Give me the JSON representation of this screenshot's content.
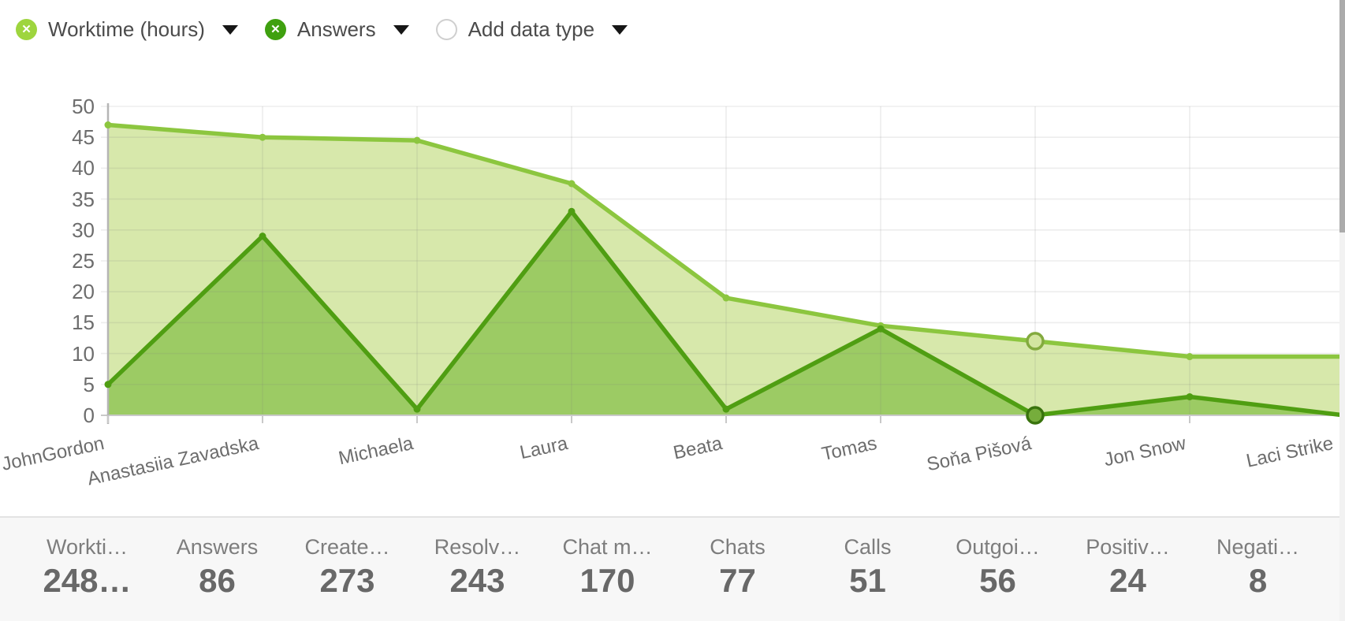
{
  "legend": {
    "items": [
      {
        "label": "Worktime (hours)",
        "icon": "x-circle",
        "circle_color": "#9ed53e",
        "x_color": "#ffffff"
      },
      {
        "label": "Answers",
        "icon": "x-circle",
        "circle_color": "#3fa00f",
        "x_color": "#ffffff"
      },
      {
        "label": "Add data type",
        "icon": "empty-circle",
        "circle_color": "#ffffff",
        "x_color": ""
      }
    ]
  },
  "chart_data": {
    "type": "area",
    "title": "",
    "xlabel": "",
    "ylabel": "",
    "categories": [
      "JohnGordon",
      "Anastasiia Zavadska",
      "Michaela",
      "Laura",
      "Beata",
      "Tomas",
      "Soňa Pišová",
      "Jon Snow",
      "Laci Strike"
    ],
    "series": [
      {
        "name": "Worktime (hours)",
        "line_color": "#8cc63f",
        "fill_color": "#d7e8ab",
        "marker_ring": {
          "fill": "#d3e5a0",
          "stroke": "#83aa3e"
        },
        "values": [
          47,
          45,
          44.5,
          37.5,
          19,
          14.5,
          12,
          9.5,
          9.5
        ]
      },
      {
        "name": "Answers",
        "line_color": "#4f9e12",
        "fill_color": "#9ccb64",
        "marker_ring": {
          "fill": "#76ad3c",
          "stroke": "#39730d"
        },
        "values": [
          5,
          29,
          1,
          33,
          1,
          14,
          0,
          3,
          0
        ]
      }
    ],
    "ylim": [
      0,
      50
    ],
    "yticks": [
      0,
      5,
      10,
      15,
      20,
      25,
      30,
      35,
      40,
      45,
      50
    ],
    "grid": true,
    "legend_position": "top-left",
    "highlight_category": "Soňa Pišová",
    "highlight_index": 6
  },
  "summary": {
    "stats": [
      {
        "label": "Workti…",
        "value": "248…"
      },
      {
        "label": "Answers",
        "value": "86"
      },
      {
        "label": "Create…",
        "value": "273"
      },
      {
        "label": "Resolv…",
        "value": "243"
      },
      {
        "label": "Chat m…",
        "value": "170"
      },
      {
        "label": "Chats",
        "value": "77"
      },
      {
        "label": "Calls",
        "value": "51"
      },
      {
        "label": "Outgoi…",
        "value": "56"
      },
      {
        "label": "Positiv…",
        "value": "24"
      },
      {
        "label": "Negati…",
        "value": "8"
      }
    ]
  },
  "colors": {
    "grid_line": "#808080",
    "zero_line": "#c9c9c9",
    "axis_line": "#b5b5b5",
    "tick": "#c9c9c9",
    "panel_bg": "#f7f7f7",
    "panel_border": "#e3e3e3"
  }
}
